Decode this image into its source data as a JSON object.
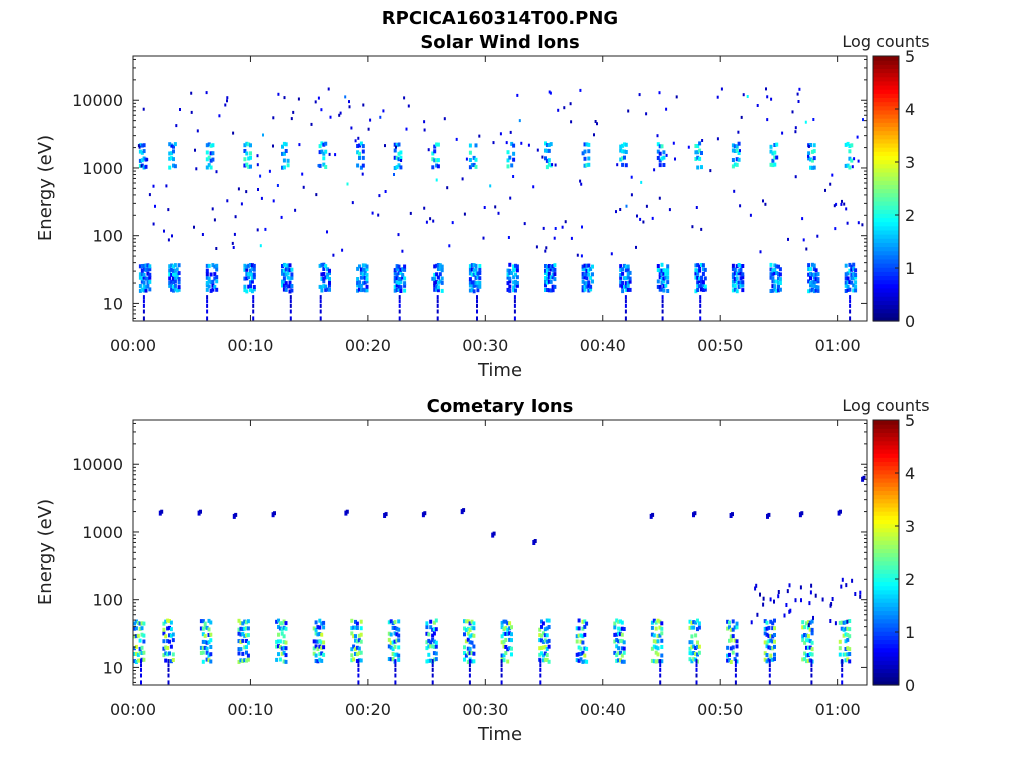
{
  "figure_title": "RPCICA160314T00.PNG",
  "chart_data": [
    {
      "type": "heatmap",
      "title": "Solar Wind Ions",
      "xlabel": "Time",
      "ylabel": "Energy (eV)",
      "x_ticks": [
        "00:00",
        "00:10",
        "00:20",
        "00:30",
        "00:40",
        "00:50",
        "01:00"
      ],
      "xlim_minutes": [
        0,
        62.5
      ],
      "y_scale": "log",
      "y_ticks": [
        10,
        100,
        1000,
        10000
      ],
      "y_tick_labels": [
        "10",
        "100",
        "1000",
        "10000"
      ],
      "ylim": [
        5.5,
        45000
      ],
      "colorbar": {
        "label": "Log counts",
        "ticks": [
          0,
          1,
          2,
          3,
          4,
          5
        ],
        "range": [
          0,
          5
        ],
        "colormap": "jet"
      },
      "sweep_period_minutes": 3.2,
      "pulses_start_minutes": [
        0.5,
        3.0,
        6.2,
        9.4,
        12.6,
        15.8,
        19.0,
        22.2,
        25.4,
        28.6,
        31.8,
        35.0,
        38.2,
        41.4,
        44.6,
        47.8,
        51.0,
        54.2,
        57.4,
        60.6
      ],
      "bands": [
        {
          "name": "low-energy",
          "energy_range_eV": [
            15,
            40
          ],
          "log_counts_range": [
            0.5,
            1.9
          ]
        },
        {
          "name": "high-energy",
          "energy_range_eV": [
            1000,
            2600
          ],
          "log_counts_range": [
            0.7,
            2.2
          ]
        }
      ],
      "scatter_noise_energy_range_eV": [
        50,
        15000
      ]
    },
    {
      "type": "heatmap",
      "title": "Cometary Ions",
      "xlabel": "Time",
      "ylabel": "Energy (eV)",
      "x_ticks": [
        "00:00",
        "00:10",
        "00:20",
        "00:30",
        "00:40",
        "00:50",
        "01:00"
      ],
      "xlim_minutes": [
        0,
        62.5
      ],
      "y_scale": "log",
      "y_ticks": [
        10,
        100,
        1000,
        10000
      ],
      "y_tick_labels": [
        "10",
        "100",
        "1000",
        "10000"
      ],
      "ylim": [
        5.5,
        45000
      ],
      "colorbar": {
        "label": "Log counts",
        "ticks": [
          0,
          1,
          2,
          3,
          4,
          5
        ],
        "range": [
          0,
          5
        ],
        "colormap": "jet"
      },
      "sweep_period_minutes": 3.2,
      "pulses_start_minutes": [
        0.0,
        2.5,
        5.7,
        8.9,
        12.1,
        15.3,
        18.5,
        21.7,
        24.9,
        28.1,
        31.3,
        34.5,
        37.7,
        40.9,
        44.1,
        47.3,
        50.5,
        53.7,
        56.9,
        60.1
      ],
      "bands": [
        {
          "name": "low-energy",
          "energy_range_eV": [
            12,
            55
          ],
          "log_counts_range": [
            0.6,
            2.9
          ]
        }
      ],
      "sparse_points_eV": [
        {
          "t": 2.2,
          "e": 1900
        },
        {
          "t": 5.5,
          "e": 1900
        },
        {
          "t": 8.5,
          "e": 1700
        },
        {
          "t": 11.8,
          "e": 1800
        },
        {
          "t": 18.0,
          "e": 1900
        },
        {
          "t": 21.3,
          "e": 1750
        },
        {
          "t": 24.6,
          "e": 1800
        },
        {
          "t": 27.9,
          "e": 2000
        },
        {
          "t": 30.5,
          "e": 900
        },
        {
          "t": 34.0,
          "e": 700
        },
        {
          "t": 44.0,
          "e": 1700
        },
        {
          "t": 47.6,
          "e": 1800
        },
        {
          "t": 50.8,
          "e": 1750
        },
        {
          "t": 53.9,
          "e": 1700
        },
        {
          "t": 56.7,
          "e": 1800
        },
        {
          "t": 60.0,
          "e": 1900
        },
        {
          "t": 62.0,
          "e": 6000
        }
      ]
    }
  ]
}
